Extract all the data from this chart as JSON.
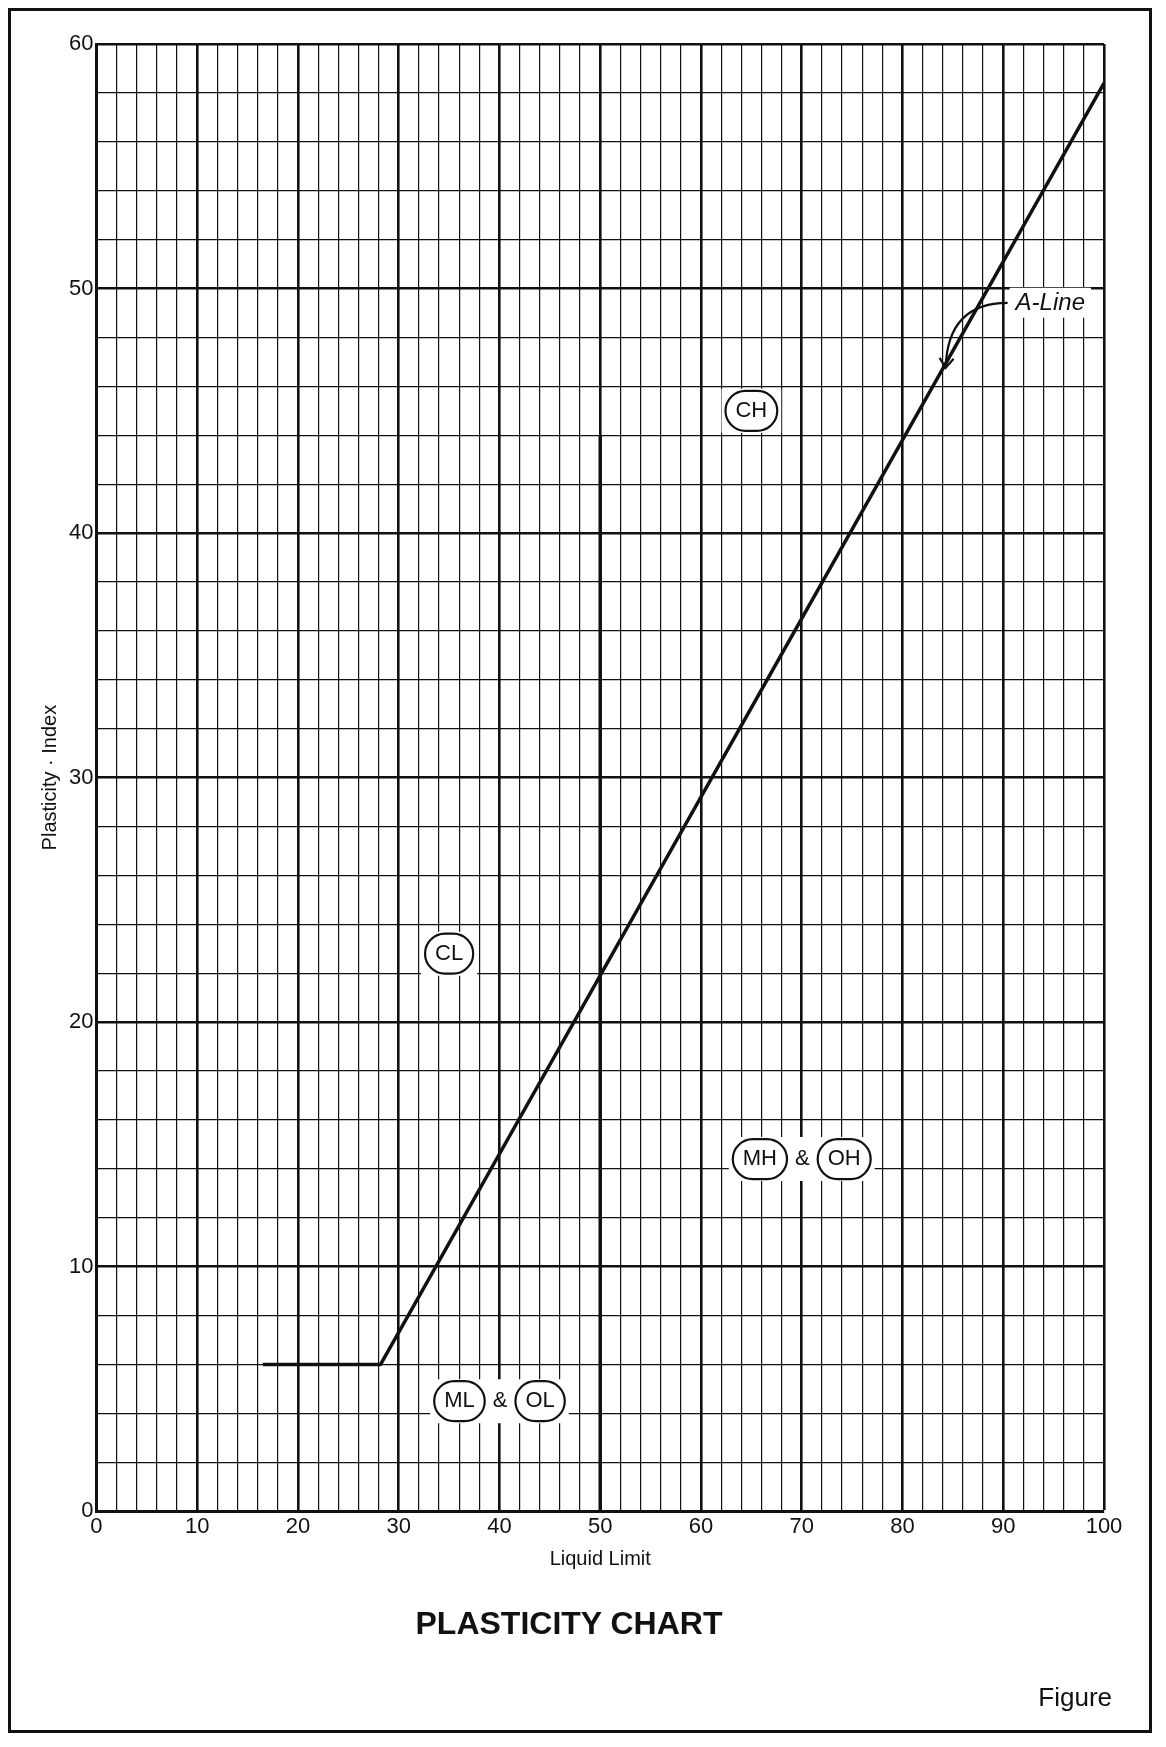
{
  "chart_data": {
    "type": "line",
    "title": "PLASTICITY CHART",
    "xlabel": "Liquid Limit",
    "ylabel": "Plasticity · Index",
    "series": [
      {
        "name": "A-Line",
        "color": "#111111",
        "x": [
          16.5,
          28.2,
          100
        ],
        "values": [
          6,
          6,
          58.4
        ]
      },
      {
        "color": "#111111",
        "x": [
          50,
          50
        ],
        "values": [
          0,
          44
        ]
      }
    ],
    "annotations": [
      "CH",
      "CL",
      "MH & OH",
      "ML & OL",
      "Figure"
    ],
    "xlim": [
      0,
      100
    ],
    "ylim": [
      0,
      60
    ],
    "xticks": [
      0,
      {
        "value": 2,
        "label": null
      },
      {
        "value": 4,
        "label": null
      },
      {
        "value": 6,
        "label": null
      },
      {
        "value": 8,
        "label": null
      },
      10,
      {
        "value": 12,
        "label": null
      },
      {
        "value": 14,
        "label": null
      },
      {
        "value": 16,
        "label": null
      },
      {
        "value": 18,
        "label": null
      },
      20,
      {
        "value": 22,
        "label": null
      },
      {
        "value": 24,
        "label": null
      },
      {
        "value": 26,
        "label": null
      },
      {
        "value": 28,
        "label": null
      },
      30,
      {
        "value": 32,
        "label": null
      },
      {
        "value": 34,
        "label": null
      },
      {
        "value": 36,
        "label": null
      },
      {
        "value": 38,
        "label": null
      },
      40,
      {
        "value": 42,
        "label": null
      },
      {
        "value": 44,
        "label": null
      },
      {
        "value": 46,
        "label": null
      },
      {
        "value": 48,
        "label": null
      },
      50,
      {
        "value": 52,
        "label": null
      },
      {
        "value": 54,
        "label": null
      },
      {
        "value": 56,
        "label": null
      },
      {
        "value": 58,
        "label": null
      },
      60,
      {
        "value": 62,
        "label": null
      },
      {
        "value": 64,
        "label": null
      },
      {
        "value": 66,
        "label": null
      },
      {
        "value": 68,
        "label": null
      },
      70,
      {
        "value": 72,
        "label": null
      },
      {
        "value": 74,
        "label": null
      },
      {
        "value": 76,
        "label": null
      },
      {
        "value": 78,
        "label": null
      },
      80,
      {
        "value": 82,
        "label": null
      },
      {
        "value": 84,
        "label": null
      },
      {
        "value": 86,
        "label": null
      },
      {
        "value": 88,
        "label": null
      },
      90,
      {
        "value": 92,
        "label": null
      },
      {
        "value": 94,
        "label": null
      },
      {
        "value": 96,
        "label": null
      },
      {
        "value": 98,
        "label": null
      },
      100
    ],
    "yticks": [
      0,
      {
        "value": 2,
        "label": null
      },
      {
        "value": 4,
        "label": null
      },
      {
        "value": 6,
        "label": null
      },
      {
        "value": 8,
        "label": null
      },
      10,
      {
        "value": 12,
        "label": null
      },
      {
        "value": 14,
        "label": null
      },
      {
        "value": 16,
        "label": null
      },
      {
        "value": 18,
        "label": null
      },
      20,
      {
        "value": 22,
        "label": null
      },
      {
        "value": 24,
        "label": null
      },
      {
        "value": 26,
        "label": null
      },
      {
        "value": 28,
        "label": null
      },
      30,
      {
        "value": 32,
        "label": null
      },
      {
        "value": 34,
        "label": null
      },
      {
        "value": 36,
        "label": null
      },
      {
        "value": 38,
        "label": null
      },
      40,
      {
        "value": 42,
        "label": null
      },
      {
        "value": 44,
        "label": null
      },
      {
        "value": 46,
        "label": null
      },
      {
        "value": 48,
        "label": null
      },
      50,
      {
        "value": 52,
        "label": null
      },
      {
        "value": 54,
        "label": null
      },
      {
        "value": 56,
        "label": null
      },
      {
        "value": 58,
        "label": null
      },
      60
    ],
    "grid": true,
    "legend": false,
    "marker": "none",
    "line_style": "solid"
  }
}
